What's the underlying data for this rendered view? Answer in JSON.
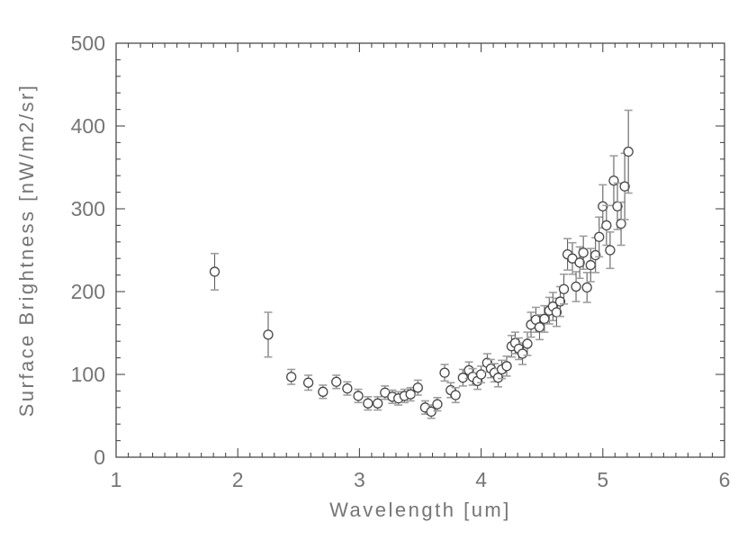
{
  "chart_data": {
    "type": "scatter",
    "xlabel": "Wavelength [um]",
    "ylabel": "Surface Brightness [nW/m2/sr]",
    "xlim": [
      1,
      6
    ],
    "ylim": [
      0,
      500
    ],
    "x_major_ticks": [
      1,
      2,
      3,
      4,
      5,
      6
    ],
    "x_tick_labels": [
      "1",
      "2",
      "3",
      "4",
      "5",
      "6"
    ],
    "x_minor_step": 0.1,
    "y_major_ticks": [
      0,
      100,
      200,
      300,
      400,
      500
    ],
    "y_tick_labels": [
      "0",
      "100",
      "200",
      "300",
      "400",
      "500"
    ],
    "y_minor_step": 20,
    "grid": "off",
    "legend": "none",
    "marker": "open-circle",
    "error_bars": "vertical",
    "colors": {
      "marker_stroke": "#474747",
      "error_line": "#5f5f5f",
      "error_cap": "#9e9e9e",
      "axis": "#3d3d3d",
      "label_text": "#757575",
      "background": "#ffffff"
    },
    "points": [
      {
        "w": 1.81,
        "v": 224,
        "err": 22
      },
      {
        "w": 2.25,
        "v": 148,
        "err": 27
      },
      {
        "w": 2.44,
        "v": 97,
        "err": 9
      },
      {
        "w": 2.58,
        "v": 90,
        "err": 9
      },
      {
        "w": 2.7,
        "v": 79,
        "err": 8
      },
      {
        "w": 2.81,
        "v": 91,
        "err": 8
      },
      {
        "w": 2.9,
        "v": 83,
        "err": 8
      },
      {
        "w": 2.99,
        "v": 74,
        "err": 8
      },
      {
        "w": 3.07,
        "v": 65,
        "err": 8
      },
      {
        "w": 3.15,
        "v": 65,
        "err": 8
      },
      {
        "w": 3.21,
        "v": 78,
        "err": 8
      },
      {
        "w": 3.27,
        "v": 73,
        "err": 8
      },
      {
        "w": 3.32,
        "v": 71,
        "err": 8
      },
      {
        "w": 3.37,
        "v": 74,
        "err": 8
      },
      {
        "w": 3.42,
        "v": 76,
        "err": 8
      },
      {
        "w": 3.48,
        "v": 84,
        "err": 9
      },
      {
        "w": 3.54,
        "v": 60,
        "err": 8
      },
      {
        "w": 3.59,
        "v": 55,
        "err": 8
      },
      {
        "w": 3.64,
        "v": 64,
        "err": 8
      },
      {
        "w": 3.7,
        "v": 102,
        "err": 10
      },
      {
        "w": 3.75,
        "v": 81,
        "err": 9
      },
      {
        "w": 3.79,
        "v": 75,
        "err": 9
      },
      {
        "w": 3.85,
        "v": 96,
        "err": 10
      },
      {
        "w": 3.9,
        "v": 105,
        "err": 10
      },
      {
        "w": 3.93,
        "v": 97,
        "err": 10
      },
      {
        "w": 3.97,
        "v": 92,
        "err": 10
      },
      {
        "w": 4.0,
        "v": 100,
        "err": 10
      },
      {
        "w": 4.05,
        "v": 114,
        "err": 11
      },
      {
        "w": 4.08,
        "v": 107,
        "err": 11
      },
      {
        "w": 4.11,
        "v": 102,
        "err": 11
      },
      {
        "w": 4.14,
        "v": 96,
        "err": 11
      },
      {
        "w": 4.17,
        "v": 106,
        "err": 11
      },
      {
        "w": 4.21,
        "v": 110,
        "err": 12
      },
      {
        "w": 4.25,
        "v": 134,
        "err": 13
      },
      {
        "w": 4.28,
        "v": 138,
        "err": 13
      },
      {
        "w": 4.31,
        "v": 131,
        "err": 13
      },
      {
        "w": 4.34,
        "v": 125,
        "err": 13
      },
      {
        "w": 4.38,
        "v": 137,
        "err": 14
      },
      {
        "w": 4.41,
        "v": 160,
        "err": 15
      },
      {
        "w": 4.45,
        "v": 166,
        "err": 15
      },
      {
        "w": 4.48,
        "v": 157,
        "err": 15
      },
      {
        "w": 4.52,
        "v": 167,
        "err": 16
      },
      {
        "w": 4.56,
        "v": 177,
        "err": 16
      },
      {
        "w": 4.59,
        "v": 182,
        "err": 17
      },
      {
        "w": 4.62,
        "v": 175,
        "err": 17
      },
      {
        "w": 4.65,
        "v": 188,
        "err": 18
      },
      {
        "w": 4.68,
        "v": 203,
        "err": 18
      },
      {
        "w": 4.71,
        "v": 245,
        "err": 19
      },
      {
        "w": 4.75,
        "v": 240,
        "err": 19
      },
      {
        "w": 4.78,
        "v": 206,
        "err": 18
      },
      {
        "w": 4.81,
        "v": 235,
        "err": 19
      },
      {
        "w": 4.84,
        "v": 247,
        "err": 20
      },
      {
        "w": 4.87,
        "v": 205,
        "err": 18
      },
      {
        "w": 4.9,
        "v": 232,
        "err": 20
      },
      {
        "w": 4.94,
        "v": 244,
        "err": 21
      },
      {
        "w": 4.97,
        "v": 266,
        "err": 24
      },
      {
        "w": 5.0,
        "v": 303,
        "err": 26
      },
      {
        "w": 5.03,
        "v": 280,
        "err": 24
      },
      {
        "w": 5.06,
        "v": 250,
        "err": 22
      },
      {
        "w": 5.09,
        "v": 334,
        "err": 30
      },
      {
        "w": 5.12,
        "v": 303,
        "err": 28
      },
      {
        "w": 5.15,
        "v": 282,
        "err": 26
      },
      {
        "w": 5.18,
        "v": 327,
        "err": 40
      },
      {
        "w": 5.21,
        "v": 369,
        "err": 50
      }
    ]
  }
}
